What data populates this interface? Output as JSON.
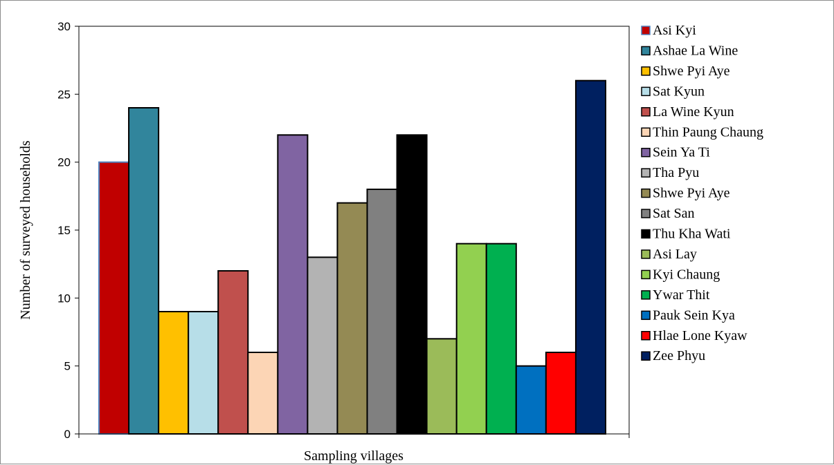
{
  "chart_data": {
    "type": "bar",
    "title": "",
    "xlabel": "Sampling villages",
    "ylabel": "Number of surveyed households",
    "ylim": [
      0,
      30
    ],
    "yticks": [
      0,
      5,
      10,
      15,
      20,
      25,
      30
    ],
    "grid": false,
    "legend_position": "right",
    "series": [
      {
        "name": "Asi Kyi",
        "value": 20,
        "color": "#C00000",
        "edge": "#4F81BD"
      },
      {
        "name": "Ashae La Wine",
        "value": 24,
        "color": "#31859C",
        "edge": "#000000"
      },
      {
        "name": "Shwe Pyi Aye",
        "value": 9,
        "color": "#FFC000",
        "edge": "#000000"
      },
      {
        "name": "Sat Kyun",
        "value": 9,
        "color": "#B7DEE8",
        "edge": "#000000"
      },
      {
        "name": "La Wine Kyun",
        "value": 12,
        "color": "#C0504D",
        "edge": "#000000"
      },
      {
        "name": "Thin Paung Chaung",
        "value": 6,
        "color": "#FCD5B5",
        "edge": "#000000"
      },
      {
        "name": "Sein Ya Ti",
        "value": 22,
        "color": "#8064A2",
        "edge": "#000000"
      },
      {
        "name": "Tha Pyu",
        "value": 13,
        "color": "#B3B3B3",
        "edge": "#000000"
      },
      {
        "name": "Shwe Pyi Aye",
        "value": 17,
        "color": "#948A54",
        "edge": "#000000"
      },
      {
        "name": "Sat San",
        "value": 18,
        "color": "#808080",
        "edge": "#000000"
      },
      {
        "name": "Thu Kha Wati",
        "value": 22,
        "color": "#000000",
        "edge": "#000000"
      },
      {
        "name": "Asi Lay",
        "value": 7,
        "color": "#9BBB59",
        "edge": "#000000"
      },
      {
        "name": "Kyi Chaung",
        "value": 14,
        "color": "#92D050",
        "edge": "#000000"
      },
      {
        "name": "Ywar Thit",
        "value": 14,
        "color": "#00B050",
        "edge": "#000000"
      },
      {
        "name": "Pauk Sein Kya",
        "value": 5,
        "color": "#0070C0",
        "edge": "#000000"
      },
      {
        "name": "Hlae Lone Kyaw",
        "value": 6,
        "color": "#FF0000",
        "edge": "#000000"
      },
      {
        "name": "Zee Phyu",
        "value": 26,
        "color": "#002060",
        "edge": "#000000"
      }
    ]
  }
}
